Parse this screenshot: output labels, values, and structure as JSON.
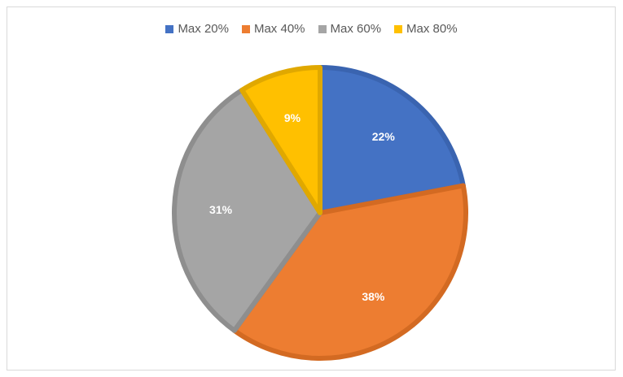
{
  "chart_data": {
    "type": "pie",
    "title": "",
    "legend_position": "top",
    "categories": [
      "Max 20%",
      "Max 40%",
      "Max 60%",
      "Max 80%"
    ],
    "values": [
      22,
      38,
      31,
      9
    ],
    "labels": [
      "22%",
      "38%",
      "31%",
      "9%"
    ],
    "colors": [
      "#4472C4",
      "#ED7D31",
      "#A5A5A5",
      "#FFC000"
    ],
    "border_colors": [
      "#3A64B0",
      "#D36A22",
      "#8E8E8E",
      "#E0A800"
    ]
  },
  "legend": {
    "items": [
      {
        "label": "Max 20%",
        "color": "#4472C4"
      },
      {
        "label": "Max 40%",
        "color": "#ED7D31"
      },
      {
        "label": "Max 60%",
        "color": "#A5A5A5"
      },
      {
        "label": "Max 80%",
        "color": "#FFC000"
      }
    ]
  }
}
